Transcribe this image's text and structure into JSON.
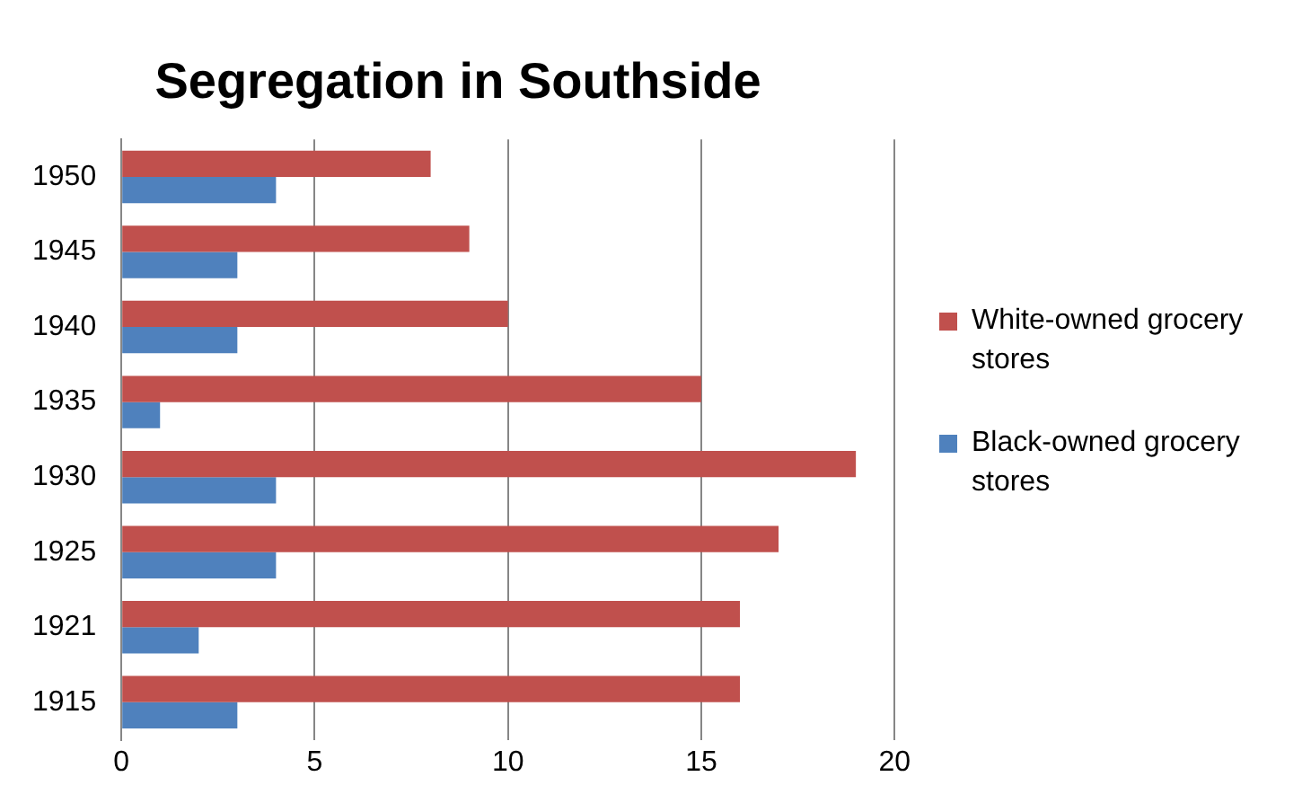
{
  "chart_data": {
    "type": "bar",
    "orientation": "horizontal",
    "title": "Segregation in Southside",
    "categories": [
      "1950",
      "1945",
      "1940",
      "1935",
      "1930",
      "1925",
      "1921",
      "1915"
    ],
    "series": [
      {
        "name": "White-owned grocery stores",
        "color": "#c0504d",
        "values": [
          8,
          9,
          10,
          15,
          19,
          17,
          16,
          16
        ]
      },
      {
        "name": "Black-owned grocery stores",
        "color": "#4f81bd",
        "values": [
          4,
          3,
          3,
          1,
          4,
          4,
          2,
          3
        ]
      }
    ],
    "xlim": [
      0,
      20
    ],
    "xticks": [
      0,
      5,
      10,
      15,
      20
    ],
    "grid": "x",
    "legend": "right"
  }
}
